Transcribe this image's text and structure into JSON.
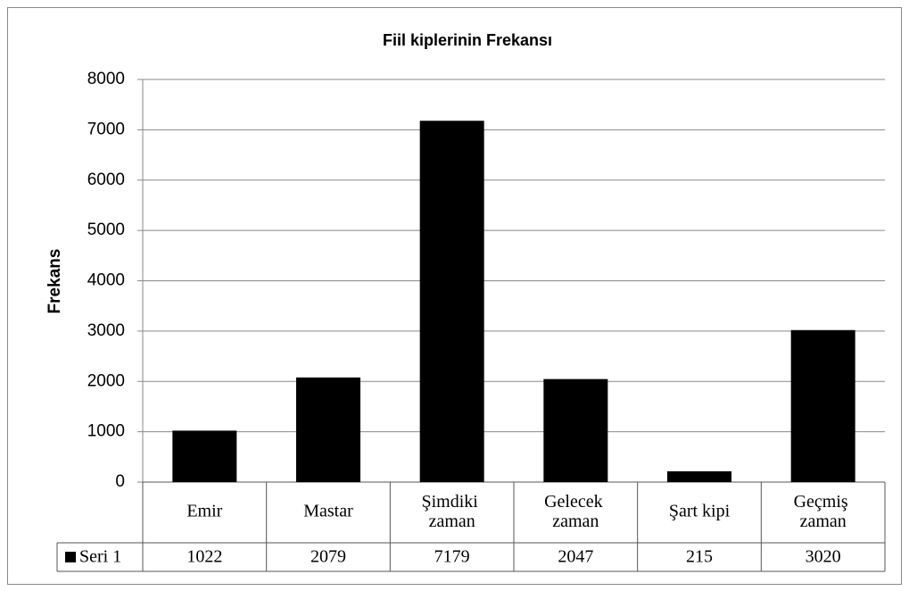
{
  "chart_data": {
    "type": "bar",
    "title": "Fiil kiplerinin Frekansı",
    "y_label": "Frekans",
    "categories": [
      "Emir",
      "Mastar",
      "Şimdiki zaman",
      "Gelecek zaman",
      "Şart kipi",
      "Geçmiş zaman"
    ],
    "series": [
      {
        "name": "Seri 1",
        "color": "#000000",
        "values": [
          1022,
          2079,
          7179,
          2047,
          215,
          3020
        ]
      }
    ],
    "ylim": [
      0,
      8000
    ],
    "yticks": [
      0,
      1000,
      2000,
      3000,
      4000,
      5000,
      6000,
      7000,
      8000
    ],
    "grid": true,
    "data_table": true
  }
}
